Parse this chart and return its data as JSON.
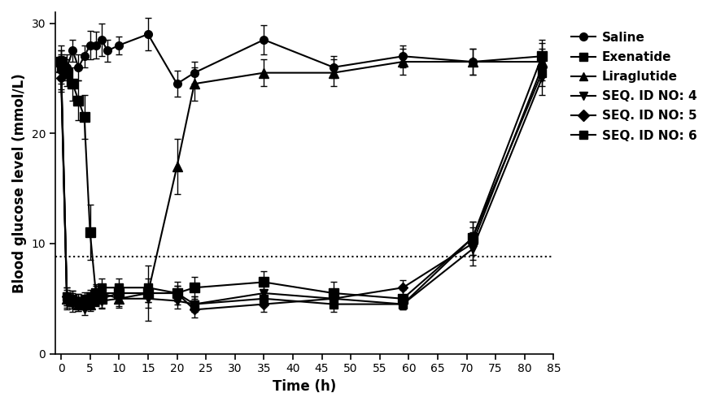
{
  "xlabel": "Time (h)",
  "ylabel": "Blood glucose level (mmol/L)",
  "xlim": [
    -1,
    85
  ],
  "ylim": [
    0,
    31
  ],
  "xticks": [
    0,
    5,
    10,
    15,
    20,
    25,
    30,
    35,
    40,
    45,
    50,
    55,
    60,
    65,
    70,
    75,
    80,
    85
  ],
  "yticks": [
    0,
    10,
    20,
    30
  ],
  "dotted_line_y": 8.8,
  "series": {
    "Saline": {
      "x": [
        0,
        1,
        2,
        3,
        4,
        5,
        6,
        7,
        8,
        10,
        15,
        20,
        23,
        35,
        47,
        59,
        71,
        83
      ],
      "y": [
        26.5,
        26.0,
        27.5,
        26.0,
        27.0,
        28.0,
        28.0,
        28.5,
        27.5,
        28.0,
        29.0,
        24.5,
        25.5,
        28.5,
        26.0,
        27.0,
        26.5,
        27.0
      ],
      "yerr": [
        1.5,
        1.2,
        1.0,
        1.2,
        1.0,
        1.3,
        1.2,
        1.5,
        1.0,
        0.8,
        1.5,
        1.2,
        1.0,
        1.3,
        1.0,
        1.0,
        1.2,
        1.2
      ],
      "marker": "o"
    },
    "Exenatide": {
      "x": [
        0,
        1,
        2,
        3,
        4,
        5,
        6,
        7,
        10,
        15,
        20,
        23,
        35,
        47,
        59,
        71,
        83
      ],
      "y": [
        26.5,
        25.5,
        24.5,
        23.0,
        21.5,
        11.0,
        5.5,
        5.0,
        5.5,
        5.5,
        5.5,
        6.0,
        6.5,
        5.5,
        5.0,
        10.5,
        27.0
      ],
      "yerr": [
        1.0,
        1.2,
        1.5,
        1.8,
        2.0,
        2.5,
        0.8,
        0.8,
        0.8,
        0.8,
        1.0,
        1.0,
        1.0,
        1.0,
        0.8,
        1.5,
        1.5
      ],
      "marker": "s"
    },
    "Liraglutide": {
      "x": [
        0,
        1,
        2,
        3,
        4,
        5,
        6,
        7,
        10,
        15,
        20,
        23,
        35,
        47,
        59,
        71,
        83
      ],
      "y": [
        26.0,
        5.0,
        4.8,
        4.5,
        4.5,
        4.5,
        5.0,
        5.5,
        5.0,
        5.5,
        17.0,
        24.5,
        25.5,
        25.5,
        26.5,
        26.5,
        26.5
      ],
      "yerr": [
        1.5,
        0.8,
        0.7,
        0.6,
        0.5,
        0.5,
        0.6,
        0.7,
        0.8,
        2.5,
        2.5,
        1.5,
        1.2,
        1.2,
        1.2,
        1.2,
        1.2
      ],
      "marker": "^"
    },
    "SEQ. ID NO: 4": {
      "x": [
        0,
        1,
        2,
        3,
        4,
        5,
        6,
        7,
        10,
        15,
        20,
        23,
        35,
        47,
        59,
        71,
        83
      ],
      "y": [
        25.5,
        4.8,
        4.5,
        4.5,
        4.0,
        4.5,
        5.0,
        4.8,
        5.0,
        5.0,
        4.8,
        4.5,
        5.5,
        5.0,
        4.5,
        9.5,
        25.0
      ],
      "yerr": [
        1.5,
        0.8,
        0.7,
        0.6,
        0.5,
        0.6,
        0.7,
        0.7,
        0.7,
        0.8,
        0.7,
        0.7,
        0.8,
        0.7,
        0.5,
        1.5,
        1.5
      ],
      "marker": "v"
    },
    "SEQ. ID NO: 5": {
      "x": [
        0,
        1,
        2,
        3,
        4,
        5,
        6,
        7,
        10,
        15,
        20,
        23,
        35,
        47,
        59,
        71,
        83
      ],
      "y": [
        25.0,
        5.2,
        5.0,
        4.8,
        4.8,
        5.0,
        5.2,
        5.5,
        5.5,
        5.5,
        5.5,
        4.0,
        4.5,
        5.0,
        6.0,
        10.0,
        26.0
      ],
      "yerr": [
        1.2,
        0.8,
        0.7,
        0.6,
        0.5,
        0.6,
        0.7,
        0.8,
        0.8,
        0.8,
        0.7,
        0.7,
        0.7,
        0.7,
        0.7,
        1.5,
        1.2
      ],
      "marker": "D"
    },
    "SEQ. ID NO: 6": {
      "x": [
        0,
        1,
        2,
        3,
        4,
        5,
        6,
        7,
        10,
        15,
        20,
        23,
        35,
        47,
        59,
        71,
        83
      ],
      "y": [
        26.0,
        5.2,
        5.0,
        4.8,
        5.0,
        5.2,
        5.5,
        6.0,
        6.0,
        6.0,
        5.5,
        4.5,
        5.0,
        4.5,
        4.5,
        10.5,
        25.5
      ],
      "yerr": [
        1.2,
        0.8,
        0.7,
        0.6,
        0.6,
        0.6,
        0.7,
        0.8,
        0.8,
        0.8,
        0.7,
        0.7,
        0.7,
        0.7,
        0.5,
        1.5,
        1.2
      ],
      "marker": "s"
    }
  },
  "series_order": [
    "Saline",
    "Exenatide",
    "Liraglutide",
    "SEQ. ID NO: 4",
    "SEQ. ID NO: 5",
    "SEQ. ID NO: 6"
  ],
  "marker_sizes": {
    "Saline": 7,
    "Exenatide": 8,
    "Liraglutide": 8,
    "SEQ. ID NO: 4": 7,
    "SEQ. ID NO: 5": 6,
    "SEQ. ID NO: 6": 7
  },
  "legend_labels": [
    "Saline",
    "Exenatide",
    "Liraglutide",
    "SEQ. ID NO: 4",
    "SEQ. ID NO: 5",
    "SEQ. ID NO: 6"
  ],
  "legend_markers": [
    "o",
    "s",
    "^",
    "v",
    "D",
    "s"
  ]
}
